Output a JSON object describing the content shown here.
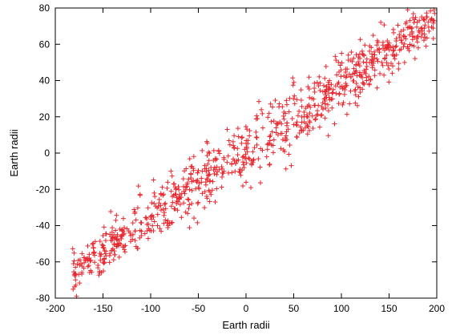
{
  "chart_data": {
    "type": "scatter",
    "title": "",
    "xlabel": "Earth radii",
    "ylabel": "Earth radii",
    "xlim": [
      -200,
      200
    ],
    "ylim": [
      -80,
      80
    ],
    "xticks": [
      -200,
      -150,
      -100,
      -50,
      0,
      50,
      100,
      150,
      200
    ],
    "yticks": [
      -80,
      -60,
      -40,
      -20,
      0,
      20,
      40,
      60,
      80
    ],
    "marker": "+",
    "point_color": "#e8262d",
    "grid": false,
    "legend": "none",
    "series": [
      {
        "trend": {
          "x_range": [
            -182,
            198
          ],
          "slope": 0.37,
          "intercept": 1.0,
          "spread_perpendicular": 9
        },
        "n_points": 900
      }
    ]
  }
}
